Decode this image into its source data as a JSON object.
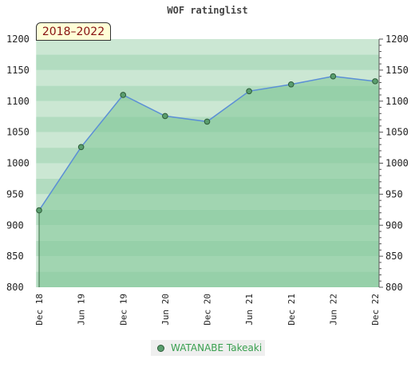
{
  "chart_data": {
    "type": "area",
    "title": "WOF ratinglist",
    "period_label": "2018–2022",
    "categories": [
      "Dec 18",
      "Jun 19",
      "Dec 19",
      "Jun 20",
      "Dec 20",
      "Jun 21",
      "Dec 21",
      "Jun 22",
      "Dec 22"
    ],
    "series": [
      {
        "name": "WATANABE Takeaki",
        "values": [
          924,
          1026,
          1110,
          1076,
          1067,
          1116,
          1127,
          1140,
          1132
        ]
      }
    ],
    "ylim": [
      800,
      1200
    ],
    "yticks": [
      800,
      850,
      900,
      950,
      1000,
      1050,
      1100,
      1150,
      1200
    ],
    "grid": true,
    "legend_position": "bottom",
    "colors": {
      "line": "#5b8fd6",
      "marker": "#5a9e6e",
      "marker_border": "#2d5b38",
      "area_fill": "#7fc696",
      "band_a": "#b2dcc0",
      "band_b": "#cbe7d3",
      "legend_text": "#3aa050"
    }
  }
}
